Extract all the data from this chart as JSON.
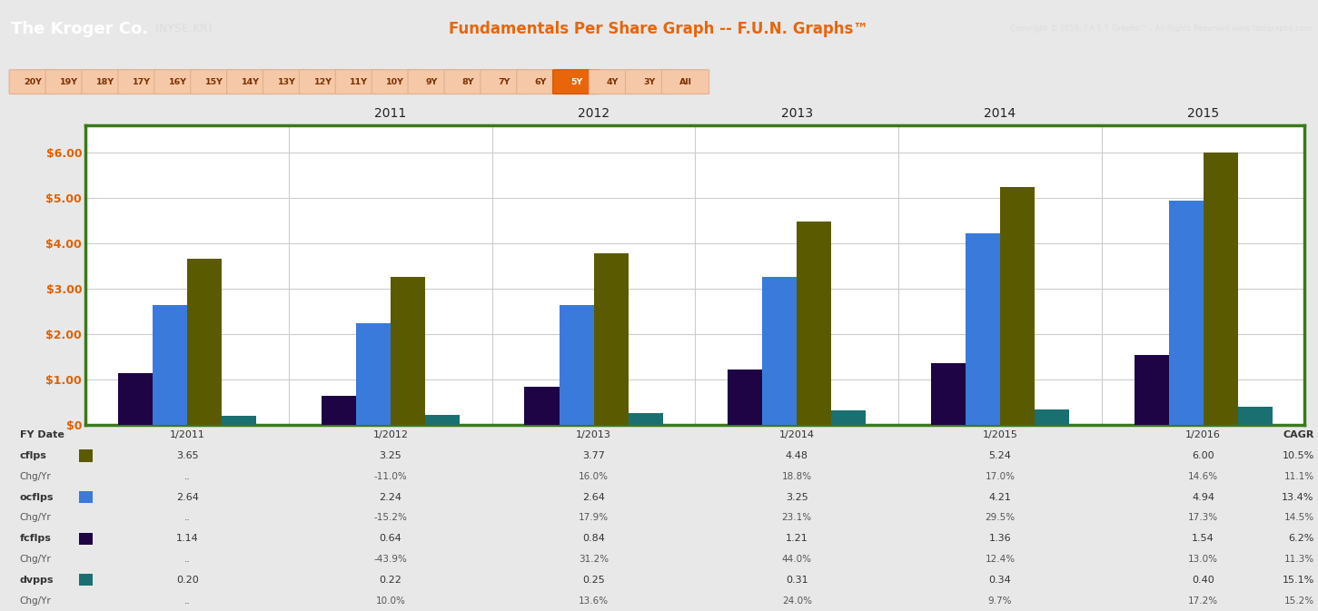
{
  "title_company": "The Kroger Co.",
  "title_ticker": "(NYSE:KR)",
  "title_center": "Fundamentals Per Share Graph -- F.U.N. Graphs™",
  "title_right": "Copyright © 2016, F.A.S.T. Graphs™ - All Rights Reserved www.fastgraphs.com",
  "header_bg": "#3b1a00",
  "header_text_color_company": "#ffffff",
  "header_text_color_title": "#e8650a",
  "chart_bg": "#ffffff",
  "chart_border_color": "#3a7a1a",
  "outer_bg": "#e8e8e8",
  "years": [
    "1/2011",
    "1/2012",
    "1/2013",
    "1/2014",
    "1/2015",
    "1/2016"
  ],
  "year_labels": [
    "2011",
    "2012",
    "2013",
    "2014",
    "2015"
  ],
  "cflps": [
    3.65,
    3.25,
    3.77,
    4.48,
    5.24,
    6.0
  ],
  "ocflps": [
    2.64,
    2.24,
    2.64,
    3.25,
    4.21,
    4.94
  ],
  "fcflps": [
    1.14,
    0.64,
    0.84,
    1.21,
    1.36,
    1.54
  ],
  "dvpps": [
    0.2,
    0.22,
    0.25,
    0.31,
    0.34,
    0.4
  ],
  "bar_color_cflps": "#5a5a00",
  "bar_color_ocflps": "#3a7adb",
  "bar_color_fcflps": "#1e0444",
  "bar_color_dvpps": "#1a7070",
  "ylim_max": 6.6,
  "yticks": [
    0,
    1,
    2,
    3,
    4,
    5,
    6
  ],
  "ytick_labels": [
    "$0",
    "$1.00",
    "$2.00",
    "$3.00",
    "$4.00",
    "$5.00",
    "$6.00"
  ],
  "grid_color": "#cccccc",
  "nav_buttons": [
    "20Y",
    "19Y",
    "18Y",
    "17Y",
    "16Y",
    "15Y",
    "14Y",
    "13Y",
    "12Y",
    "11Y",
    "10Y",
    "9Y",
    "8Y",
    "7Y",
    "6Y",
    "5Y",
    "4Y",
    "3Y",
    "All"
  ],
  "active_button": "5Y",
  "nav_bg_inactive": "#f5c8a8",
  "nav_bg_active": "#e8650a",
  "nav_text_color": "#7a3000",
  "cflps_vals": [
    "3.65",
    "3.25",
    "3.77",
    "4.48",
    "5.24",
    "6.00"
  ],
  "ocflps_vals": [
    "2.64",
    "2.24",
    "2.64",
    "3.25",
    "4.21",
    "4.94"
  ],
  "fcflps_vals": [
    "1.14",
    "0.64",
    "0.84",
    "1.21",
    "1.36",
    "1.54"
  ],
  "dvpps_vals": [
    "0.20",
    "0.22",
    "0.25",
    "0.31",
    "0.34",
    "0.40"
  ],
  "cflps_chg": [
    "..",
    "-11.0%",
    "16.0%",
    "18.8%",
    "17.0%",
    "14.6%"
  ],
  "ocflps_chg": [
    "..",
    "-15.2%",
    "17.9%",
    "23.1%",
    "29.5%",
    "17.3%"
  ],
  "fcflps_chg": [
    "..",
    "-43.9%",
    "31.2%",
    "44.0%",
    "12.4%",
    "13.0%"
  ],
  "dvpps_chg": [
    "..",
    "10.0%",
    "13.6%",
    "24.0%",
    "9.7%",
    "17.2%"
  ],
  "cagr_vals": [
    "CAGR",
    "10.5%",
    "11.1%",
    "13.4%",
    "14.5%",
    "6.2%",
    "11.3%",
    "15.1%",
    "15.2%"
  ]
}
